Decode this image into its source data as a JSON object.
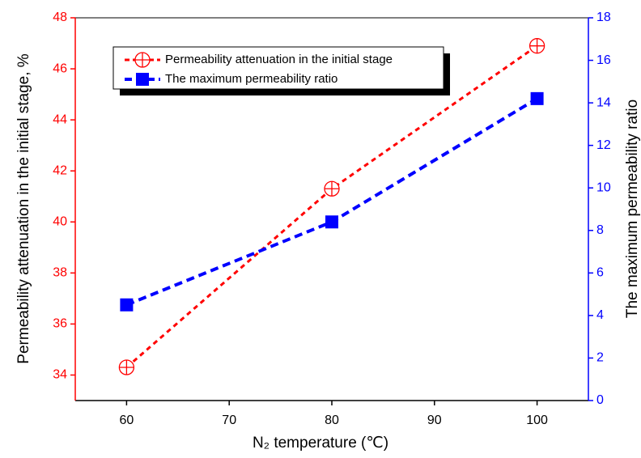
{
  "chart_data": {
    "type": "line",
    "x_label": "N₂ temperature (℃)",
    "y_label": "Permeability attenuation in the initial stage, %",
    "y2_label": "The maximum permeability ratio",
    "x": [
      60,
      80,
      100
    ],
    "xlim": [
      55,
      105
    ],
    "xticks": [
      60,
      70,
      80,
      90,
      100
    ],
    "ylim": [
      33,
      48
    ],
    "yticks": [
      34,
      36,
      38,
      40,
      42,
      44,
      46,
      48
    ],
    "y2lim": [
      0,
      18
    ],
    "y2ticks": [
      0,
      2,
      4,
      6,
      8,
      10,
      12,
      14,
      16,
      18
    ],
    "legend_position": "upper left",
    "series": [
      {
        "name": "Permeability attenuation in the initial stage",
        "color": "#ff0000",
        "marker": "circle-plus",
        "values": [
          34.3,
          41.3,
          46.9
        ]
      },
      {
        "name": "The maximum permeability ratio",
        "color": "#0000ff",
        "marker": "square",
        "axis": "y2",
        "values": [
          4.5,
          8.4,
          14.2
        ]
      }
    ]
  }
}
